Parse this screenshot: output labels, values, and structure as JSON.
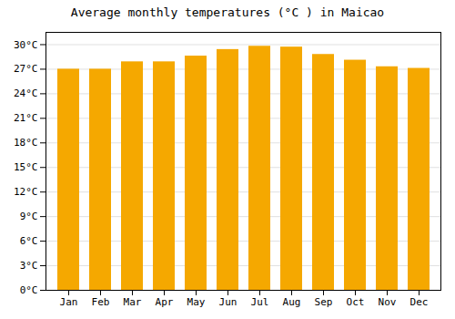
{
  "chart_data": {
    "type": "bar",
    "title": "Average monthly temperatures (°C ) in Maicao",
    "categories": [
      "Jan",
      "Feb",
      "Mar",
      "Apr",
      "May",
      "Jun",
      "Jul",
      "Aug",
      "Sep",
      "Oct",
      "Nov",
      "Dec"
    ],
    "values": [
      27.0,
      27.0,
      27.9,
      27.9,
      28.6,
      29.4,
      29.8,
      29.7,
      28.8,
      28.1,
      27.3,
      27.1
    ],
    "color": "#F5A800",
    "ylim": [
      0,
      31.5
    ],
    "yticks": [
      {
        "value": 0,
        "label": "0°C"
      },
      {
        "value": 3,
        "label": "3°C"
      },
      {
        "value": 6,
        "label": "6°C"
      },
      {
        "value": 9,
        "label": "9°C"
      },
      {
        "value": 12,
        "label": "12°C"
      },
      {
        "value": 15,
        "label": "15°C"
      },
      {
        "value": 18,
        "label": "18°C"
      },
      {
        "value": 21,
        "label": "21°C"
      },
      {
        "value": 24,
        "label": "24°C"
      },
      {
        "value": 27,
        "label": "27°C"
      },
      {
        "value": 30,
        "label": "30°C"
      }
    ],
    "grid": true
  }
}
